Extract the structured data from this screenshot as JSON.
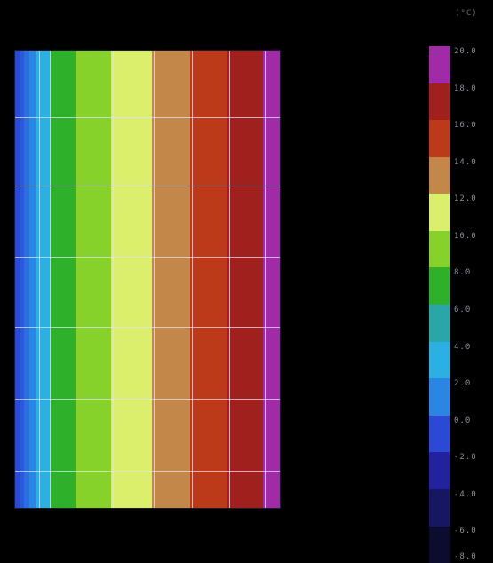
{
  "unit_label": "(°C)",
  "colorbar": {
    "ticks": [
      "20.0",
      "18.0",
      "16.0",
      "14.0",
      "12.0",
      "10.0",
      "8.0",
      "6.0",
      "4.0",
      "2.0",
      "0.0",
      "-2.0",
      "-4.0",
      "-6.0",
      "-8.0"
    ],
    "bands": [
      {
        "range": "18.0–20.0",
        "color": "#a02aa8"
      },
      {
        "range": "16.0–18.0",
        "color": "#a0201e"
      },
      {
        "range": "14.0–16.0",
        "color": "#bc3a1a"
      },
      {
        "range": "12.0–14.0",
        "color": "#c4874a"
      },
      {
        "range": "10.0–12.0",
        "color": "#dcef6c"
      },
      {
        "range": "8.0–10.0",
        "color": "#86d22a"
      },
      {
        "range": "6.0–8.0",
        "color": "#2eb02a"
      },
      {
        "range": "4.0–6.0",
        "color": "#2aa6a6"
      },
      {
        "range": "2.0–4.0",
        "color": "#2ab0e2"
      },
      {
        "range": "0.0–2.0",
        "color": "#2a86e2"
      },
      {
        "range": "-2.0–0.0",
        "color": "#2a4ad6"
      },
      {
        "range": "-4.0–-2.0",
        "color": "#22229e"
      },
      {
        "range": "-6.0–-4.0",
        "color": "#161662"
      },
      {
        "range": "-8.0–-6.0",
        "color": "#0c0c2e"
      }
    ]
  },
  "plot": {
    "strips": [
      {
        "color": "#2a4ad6"
      },
      {
        "color": "#2a58da"
      },
      {
        "color": "#2a6ee0"
      },
      {
        "color": "#2a86e2"
      },
      {
        "color": "#2ab0e2"
      },
      {
        "color": "#2eb02a"
      },
      {
        "color": "#86d22a"
      },
      {
        "color": "#dcef6c"
      },
      {
        "color": "#c4874a"
      },
      {
        "color": "#bc3a1a"
      },
      {
        "color": "#a0201e"
      },
      {
        "color": "#a02aa8"
      }
    ]
  }
}
